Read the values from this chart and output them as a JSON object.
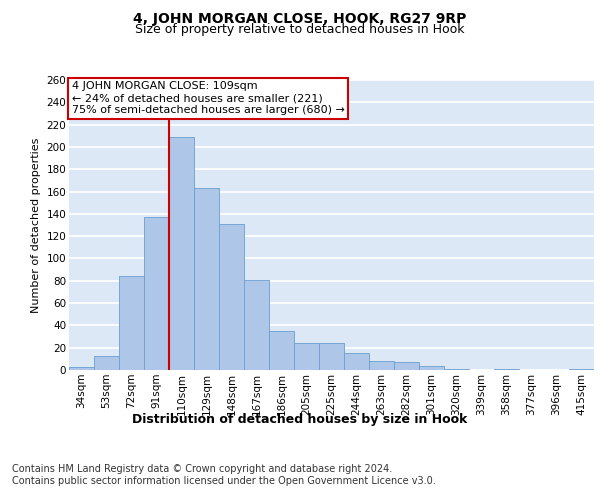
{
  "title": "4, JOHN MORGAN CLOSE, HOOK, RG27 9RP",
  "subtitle": "Size of property relative to detached houses in Hook",
  "xlabel": "Distribution of detached houses by size in Hook",
  "ylabel": "Number of detached properties",
  "bar_labels": [
    "34sqm",
    "53sqm",
    "72sqm",
    "91sqm",
    "110sqm",
    "129sqm",
    "148sqm",
    "167sqm",
    "186sqm",
    "205sqm",
    "225sqm",
    "244sqm",
    "263sqm",
    "282sqm",
    "301sqm",
    "320sqm",
    "339sqm",
    "358sqm",
    "377sqm",
    "396sqm",
    "415sqm"
  ],
  "bar_values": [
    3,
    13,
    84,
    137,
    209,
    163,
    131,
    81,
    35,
    24,
    24,
    15,
    8,
    7,
    4,
    1,
    0,
    1,
    0,
    0,
    1
  ],
  "bar_color": "#aec6e8",
  "bar_edge_color": "#6a9fd0",
  "vline_index": 4,
  "vline_color": "#cc0000",
  "annotation_text": "4 JOHN MORGAN CLOSE: 109sqm\n← 24% of detached houses are smaller (221)\n75% of semi-detached houses are larger (680) →",
  "annotation_box_facecolor": "#ffffff",
  "annotation_box_edgecolor": "#cc0000",
  "ylim": [
    0,
    260
  ],
  "yticks": [
    0,
    20,
    40,
    60,
    80,
    100,
    120,
    140,
    160,
    180,
    200,
    220,
    240,
    260
  ],
  "footer_line1": "Contains HM Land Registry data © Crown copyright and database right 2024.",
  "footer_line2": "Contains public sector information licensed under the Open Government Licence v3.0.",
  "plot_bg_color": "#dce8f5",
  "grid_color": "#ffffff",
  "title_fontsize": 10,
  "subtitle_fontsize": 9,
  "xlabel_fontsize": 9,
  "ylabel_fontsize": 8,
  "tick_fontsize": 7.5,
  "annotation_fontsize": 8,
  "footer_fontsize": 7
}
